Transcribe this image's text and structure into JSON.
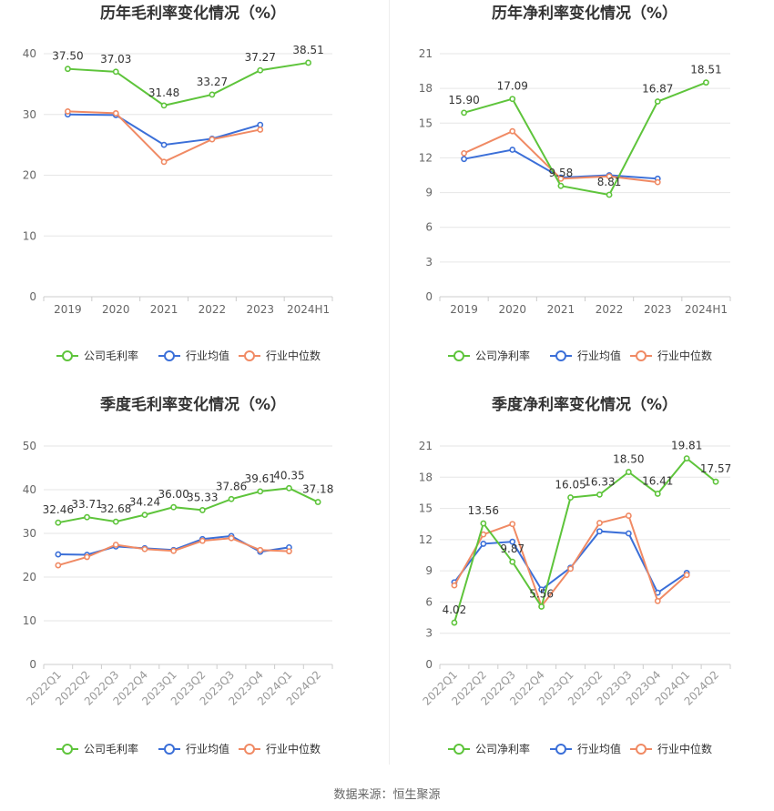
{
  "source_text": "数据来源：恒生聚源",
  "legend_labels": {
    "industry_avg": "行业均值",
    "industry_median": "行业中位数"
  },
  "colors": {
    "company": "#5ec43b",
    "industry_avg": "#3b6fd8",
    "industry_median": "#f08a64"
  },
  "chart_data": [
    {
      "type": "line",
      "title": "历年毛利率变化情况（%）",
      "categories": [
        "2019",
        "2020",
        "2021",
        "2022",
        "2023",
        "2024H1"
      ],
      "ylim": [
        0,
        40
      ],
      "yticks": [
        0,
        10,
        20,
        30,
        40
      ],
      "series": [
        {
          "name": "公司毛利率",
          "key": "company",
          "values": [
            37.5,
            37.03,
            31.48,
            33.27,
            37.27,
            38.51
          ],
          "labels": [
            "37.50",
            "37.03",
            "31.48",
            "33.27",
            "37.27",
            "38.51"
          ]
        },
        {
          "name": "行业均值",
          "key": "industry_avg",
          "values": [
            30.0,
            29.9,
            25.0,
            26.0,
            28.3,
            null
          ]
        },
        {
          "name": "行业中位数",
          "key": "industry_median",
          "values": [
            30.5,
            30.2,
            22.2,
            25.9,
            27.5,
            null
          ]
        }
      ]
    },
    {
      "type": "line",
      "title": "历年净利率变化情况（%）",
      "categories": [
        "2019",
        "2020",
        "2021",
        "2022",
        "2023",
        "2024H1"
      ],
      "ylim": [
        0,
        21
      ],
      "yticks": [
        0,
        3,
        6,
        9,
        12,
        15,
        18,
        21
      ],
      "series": [
        {
          "name": "公司净利率",
          "key": "company",
          "values": [
            15.9,
            17.09,
            9.58,
            8.81,
            16.87,
            18.51
          ],
          "labels": [
            "15.90",
            "17.09",
            "9.58",
            "8.81",
            "16.87",
            "18.51"
          ]
        },
        {
          "name": "行业均值",
          "key": "industry_avg",
          "values": [
            11.9,
            12.7,
            10.3,
            10.5,
            10.2,
            null
          ]
        },
        {
          "name": "行业中位数",
          "key": "industry_median",
          "values": [
            12.4,
            14.3,
            10.2,
            10.4,
            9.9,
            null
          ]
        }
      ]
    },
    {
      "type": "line",
      "title": "季度毛利率变化情况（%）",
      "categories": [
        "2022Q1",
        "2022Q2",
        "2022Q3",
        "2022Q4",
        "2023Q1",
        "2023Q2",
        "2023Q3",
        "2023Q4",
        "2024Q1",
        "2024Q2"
      ],
      "ylim": [
        0,
        50
      ],
      "yticks": [
        0,
        10,
        20,
        30,
        40,
        50
      ],
      "series": [
        {
          "name": "公司毛利率",
          "key": "company",
          "values": [
            32.46,
            33.71,
            32.68,
            34.24,
            36.0,
            35.33,
            37.86,
            39.61,
            40.35,
            37.18
          ],
          "labels": [
            "32.46",
            "33.71",
            "32.68",
            "34.24",
            "36.00",
            "35.33",
            "37.86",
            "39.61",
            "40.35",
            "37.18"
          ]
        },
        {
          "name": "行业均值",
          "key": "industry_avg",
          "values": [
            25.2,
            25.1,
            27.0,
            26.6,
            26.2,
            28.7,
            29.4,
            25.8,
            26.8,
            null
          ]
        },
        {
          "name": "行业中位数",
          "key": "industry_median",
          "values": [
            22.7,
            24.6,
            27.4,
            26.4,
            26.0,
            28.3,
            28.9,
            26.2,
            25.9,
            null
          ]
        }
      ]
    },
    {
      "type": "line",
      "title": "季度净利率变化情况（%）",
      "categories": [
        "2022Q1",
        "2022Q2",
        "2022Q3",
        "2022Q4",
        "2023Q1",
        "2023Q2",
        "2023Q3",
        "2023Q4",
        "2024Q1",
        "2024Q2"
      ],
      "ylim": [
        0,
        21
      ],
      "yticks": [
        0,
        3,
        6,
        9,
        12,
        15,
        18,
        21
      ],
      "series": [
        {
          "name": "公司净利率",
          "key": "company",
          "values": [
            4.02,
            13.56,
            9.87,
            5.56,
            16.05,
            16.33,
            18.5,
            16.41,
            19.81,
            17.57
          ],
          "labels": [
            "4.02",
            "13.56",
            "9.87",
            "5.56",
            "16.05",
            "16.33",
            "18.50",
            "16.41",
            "19.81",
            "17.57"
          ]
        },
        {
          "name": "行业均值",
          "key": "industry_avg",
          "values": [
            7.9,
            11.6,
            11.8,
            7.2,
            9.3,
            12.8,
            12.6,
            6.9,
            8.8,
            null
          ]
        },
        {
          "name": "行业中位数",
          "key": "industry_median",
          "values": [
            7.6,
            12.5,
            13.5,
            5.6,
            9.2,
            13.6,
            14.3,
            6.1,
            8.6,
            null
          ]
        }
      ]
    }
  ]
}
